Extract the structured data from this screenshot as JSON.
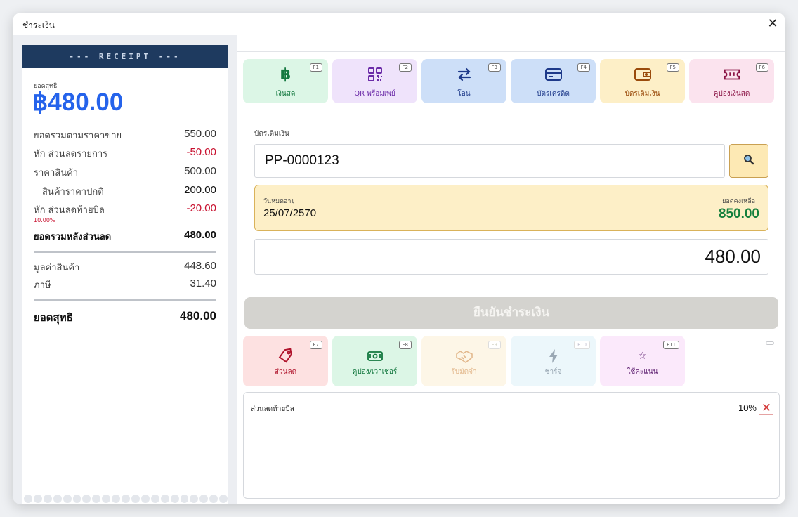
{
  "dialog": {
    "title": "ชำระเงิน",
    "close_label": "✕"
  },
  "receipt": {
    "header": "--- RECEIPT ---",
    "net_label": "ยอดสุทธิ",
    "net_amount": "฿480.00",
    "rows": [
      {
        "label": "ยอดรวมตามราคาขาย",
        "value": "550.00"
      },
      {
        "label": "หัก ส่วนลดรายการ",
        "value": "-50.00"
      },
      {
        "label": "ราคาสินค้า",
        "value": "500.00"
      },
      {
        "label": "สินค้าราคาปกติ",
        "value": "200.00"
      },
      {
        "label": "หัก ส่วนลดท้ายบิล",
        "value": "-20.00",
        "sub": "10.00%"
      },
      {
        "label": "ยอดรวมหลังส่วนลด",
        "value": "480.00"
      },
      {
        "label": "มูลค่าสินค้า",
        "value": "448.60"
      },
      {
        "label": "ภาษี",
        "value": "31.40"
      },
      {
        "label": "ยอดสุทธิ",
        "value": "480.00"
      }
    ]
  },
  "payment_methods": [
    {
      "label": "เงินสด",
      "key": "F1",
      "icon": "baht-icon"
    },
    {
      "label": "QR พร้อมเพย์",
      "key": "F2",
      "icon": "qr-code-icon"
    },
    {
      "label": "โอน",
      "key": "F3",
      "icon": "transfer-icon"
    },
    {
      "label": "บัตรเครดิต",
      "key": "F4",
      "icon": "credit-card-icon"
    },
    {
      "label": "บัตรเติมเงิน",
      "key": "F5",
      "icon": "wallet-icon"
    },
    {
      "label": "คูปองเงินสด",
      "key": "F6",
      "icon": "ticket-icon"
    }
  ],
  "card_section": {
    "label": "บัตรเติมเงิน",
    "card_number": "PP-0000123",
    "expiry_label": "วันหมดอายุ",
    "expiry_value": "25/07/2570",
    "balance_label": "ยอดคงเหลือ",
    "balance_value": "850.00",
    "amount_value": "480.00"
  },
  "confirm_label": "ยืนยันชำระเงิน",
  "discount_actions": [
    {
      "label": "ส่วนลด",
      "key": "F7",
      "icon": "tag-icon"
    },
    {
      "label": "คูปอง/เวาเชอร์",
      "key": "F8",
      "icon": "voucher-icon"
    },
    {
      "label": "รับมัดจำ",
      "key": "F9",
      "icon": "handshake-icon"
    },
    {
      "label": "ชาร์จ",
      "key": "F10",
      "icon": "lightning-icon"
    },
    {
      "label": "ใช้คะแนน",
      "key": "F11",
      "icon": "star-icon"
    }
  ],
  "applied_discounts": [
    {
      "label": "ส่วนลดท้ายบิล",
      "value": "10%",
      "remove_label": "✕"
    }
  ],
  "colors": {
    "accent_blue": "#2563eb",
    "receipt_header": "#1e3a5f",
    "balance_green": "#15803d",
    "discount_red": "#c8102e"
  }
}
